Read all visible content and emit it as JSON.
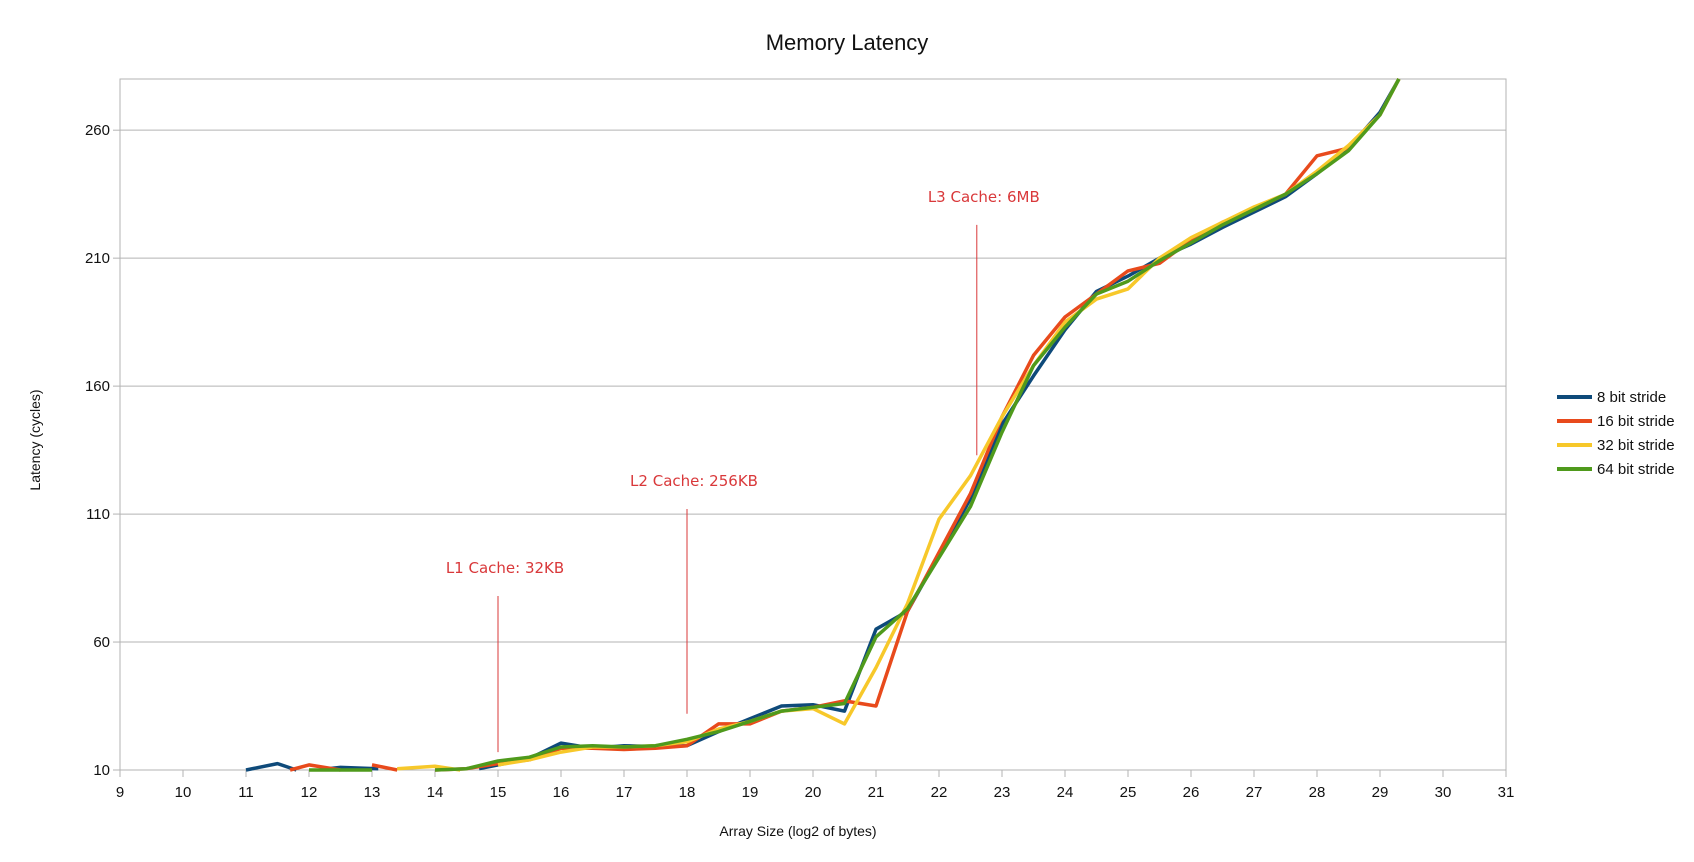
{
  "chart_data": {
    "type": "line",
    "title": "Memory Latency",
    "xlabel": "Array Size (log2 of bytes)",
    "ylabel": "Latency (cycles)",
    "xlim": [
      9,
      31
    ],
    "ylim": [
      10,
      280
    ],
    "xticks": [
      9,
      10,
      11,
      12,
      13,
      14,
      15,
      16,
      17,
      18,
      19,
      20,
      21,
      22,
      23,
      24,
      25,
      26,
      27,
      28,
      29,
      30,
      31
    ],
    "yticks": [
      10,
      60,
      110,
      160,
      210,
      260
    ],
    "grid": "horizontal",
    "legend_position": "right",
    "series": [
      {
        "name": "8 bit stride",
        "color": "#0e4a7a",
        "points": [
          [
            11,
            10
          ],
          [
            11.5,
            12.5
          ],
          [
            11.8,
            10
          ],
          null,
          [
            12.3,
            10.5
          ],
          [
            12.5,
            11
          ],
          [
            13.1,
            10.5
          ],
          null,
          [
            14.7,
            10.5
          ],
          [
            15,
            12
          ],
          [
            15.5,
            14.5
          ],
          [
            16,
            20.5
          ],
          [
            16.5,
            18.5
          ],
          [
            17,
            19.5
          ],
          [
            17.5,
            19.2
          ],
          [
            18,
            19.5
          ],
          [
            18.5,
            25
          ],
          [
            19,
            30
          ],
          [
            19.5,
            35
          ],
          [
            20,
            35.5
          ],
          [
            20.5,
            33
          ],
          [
            21,
            65
          ],
          [
            21.5,
            72
          ],
          [
            22,
            94
          ],
          [
            22.5,
            116
          ],
          [
            23,
            145
          ],
          [
            23.5,
            164
          ],
          [
            24,
            182
          ],
          [
            24.5,
            197
          ],
          [
            25,
            203
          ],
          [
            25.5,
            210
          ],
          [
            26,
            215.5
          ],
          [
            26.5,
            222
          ],
          [
            27,
            228
          ],
          [
            27.5,
            234
          ],
          [
            28,
            243
          ],
          [
            28.5,
            253
          ],
          [
            29,
            267
          ],
          [
            29.3,
            280
          ]
        ]
      },
      {
        "name": "16 bit stride",
        "color": "#e84a1c",
        "points": [
          [
            11.7,
            10
          ],
          [
            12,
            12
          ],
          [
            12.5,
            10
          ],
          null,
          [
            13,
            12
          ],
          [
            13.4,
            10
          ],
          null,
          [
            14,
            10
          ],
          [
            14.5,
            10.5
          ],
          [
            15,
            12.5
          ],
          [
            15.5,
            14
          ],
          [
            16,
            18.5
          ],
          [
            16.5,
            18.5
          ],
          [
            17,
            18
          ],
          [
            17.5,
            18.5
          ],
          [
            18,
            19.5
          ],
          [
            18.5,
            28
          ],
          [
            19,
            28
          ],
          [
            19.5,
            33
          ],
          [
            20,
            34.5
          ],
          [
            20.5,
            37
          ],
          [
            21,
            35
          ],
          [
            21.5,
            72
          ],
          [
            22,
            95
          ],
          [
            22.5,
            118
          ],
          [
            23,
            148
          ],
          [
            23.5,
            172
          ],
          [
            24,
            187
          ],
          [
            24.5,
            196
          ],
          [
            25,
            205
          ],
          [
            25.5,
            208
          ],
          [
            26,
            217
          ],
          [
            26.5,
            224
          ],
          [
            27,
            229
          ],
          [
            27.5,
            235
          ],
          [
            28,
            250
          ],
          [
            28.5,
            253
          ],
          [
            29,
            266
          ],
          [
            29.3,
            280
          ]
        ]
      },
      {
        "name": "32 bit stride",
        "color": "#f7c82a",
        "points": [
          [
            13.4,
            10.5
          ],
          [
            14,
            11.5
          ],
          [
            14.4,
            10
          ],
          null,
          [
            15,
            12
          ],
          [
            15.5,
            14
          ],
          [
            16,
            17
          ],
          [
            16.5,
            19
          ],
          [
            17,
            19
          ],
          [
            17.5,
            19.5
          ],
          [
            18,
            21
          ],
          [
            18.5,
            26
          ],
          [
            19,
            29
          ],
          [
            19.5,
            33
          ],
          [
            20,
            34
          ],
          [
            20.5,
            28
          ],
          [
            21,
            50
          ],
          [
            21.5,
            75
          ],
          [
            22,
            108
          ],
          [
            22.5,
            125
          ],
          [
            23,
            148
          ],
          [
            23.5,
            168
          ],
          [
            24,
            185
          ],
          [
            24.5,
            194
          ],
          [
            25,
            198
          ],
          [
            25.5,
            210
          ],
          [
            26,
            218
          ],
          [
            26.5,
            224
          ],
          [
            27,
            230
          ],
          [
            27.5,
            235
          ],
          [
            28,
            244
          ],
          [
            28.5,
            254
          ],
          [
            29,
            266
          ],
          [
            29.3,
            280
          ]
        ]
      },
      {
        "name": "64 bit stride",
        "color": "#4f9a1c",
        "points": [
          [
            12,
            10
          ],
          [
            12.5,
            10
          ],
          [
            13,
            10
          ],
          null,
          [
            14,
            10
          ],
          [
            14.5,
            10.5
          ],
          [
            15,
            13.5
          ],
          [
            15.5,
            15
          ],
          [
            16,
            19
          ],
          [
            16.5,
            19.5
          ],
          [
            17,
            19
          ],
          [
            17.5,
            19.5
          ],
          [
            18,
            22
          ],
          [
            18.5,
            25
          ],
          [
            19,
            29
          ],
          [
            19.5,
            33
          ],
          [
            20,
            34.5
          ],
          [
            20.5,
            36
          ],
          [
            21,
            62
          ],
          [
            21.5,
            73
          ],
          [
            22,
            93
          ],
          [
            22.5,
            113
          ],
          [
            23,
            142
          ],
          [
            23.5,
            168
          ],
          [
            24,
            183
          ],
          [
            24.5,
            196
          ],
          [
            25,
            201
          ],
          [
            25.5,
            209
          ],
          [
            26,
            216
          ],
          [
            26.5,
            223
          ],
          [
            27,
            229
          ],
          [
            27.5,
            235
          ],
          [
            28,
            243
          ],
          [
            28.5,
            252
          ],
          [
            29,
            266
          ],
          [
            29.3,
            280
          ]
        ]
      }
    ],
    "annotations": [
      {
        "text": "L1 Cache: 32KB",
        "x": 15,
        "line_from": 17,
        "line_to": 78
      },
      {
        "text": "L2 Cache: 256KB",
        "x": 18,
        "line_from": 32,
        "line_to": 112
      },
      {
        "text": "L3 Cache: 6MB",
        "x": 22.6,
        "line_from": 133,
        "line_to": 223
      }
    ],
    "annotation_color": "#d9383a"
  }
}
